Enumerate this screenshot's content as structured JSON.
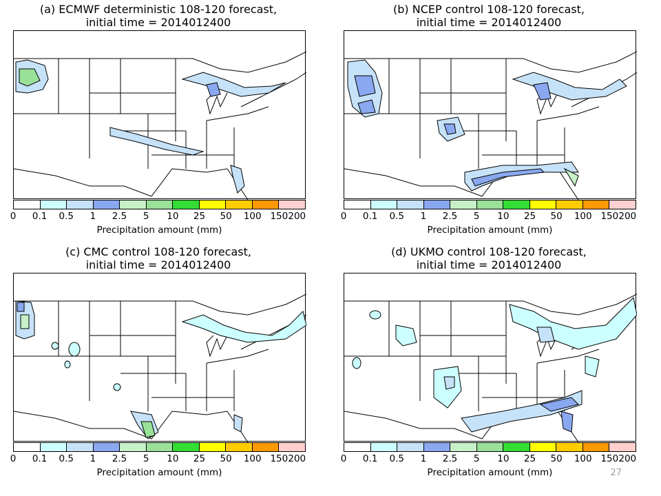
{
  "panels": [
    {
      "id": "a",
      "title_line1": "(a) ECMWF deterministic 108-120 forecast,",
      "title_line2": "initial time = 2014012400"
    },
    {
      "id": "b",
      "title_line1": "(b) NCEP control 108-120 forecast,",
      "title_line2": "initial time = 2014012400"
    },
    {
      "id": "c",
      "title_line1": "(c) CMC control 108-120 forecast,",
      "title_line2": "initial time = 2014012400"
    },
    {
      "id": "d",
      "title_line1": "(d) UKMO control 108-120 forecast,",
      "title_line2": "initial time = 2014012400"
    }
  ],
  "colorbar": {
    "label": "Precipitation amount (mm)",
    "ticks": [
      "0",
      "0.1",
      "0.5",
      "1",
      "2.5",
      "5",
      "10",
      "25",
      "50",
      "100",
      "150",
      "200"
    ],
    "colors": [
      "#ffffff",
      "#ccffff",
      "#c6e2f8",
      "#8aa8f0",
      "#c8f0c8",
      "#99e099",
      "#33dd33",
      "#ffff00",
      "#ffcc00",
      "#ff9900",
      "#ffd0d0"
    ]
  },
  "page_number": "27"
}
